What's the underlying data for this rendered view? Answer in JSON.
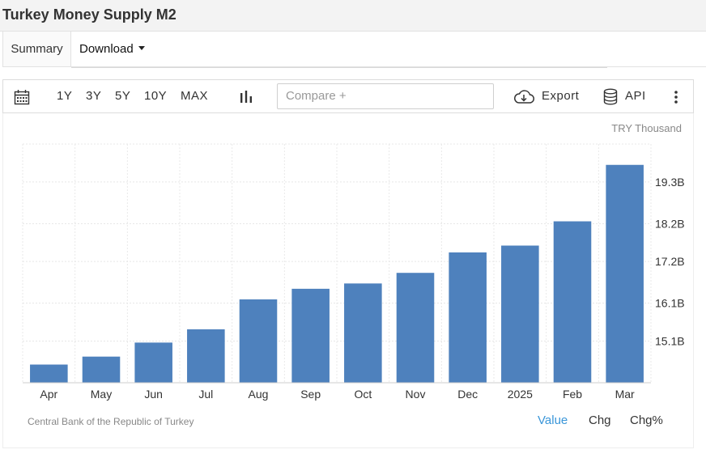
{
  "page": {
    "title": "Turkey Money Supply M2"
  },
  "tabs": {
    "summary": "Summary",
    "download": "Download"
  },
  "toolbar": {
    "ranges": [
      "1Y",
      "3Y",
      "5Y",
      "10Y",
      "MAX"
    ],
    "compare_placeholder": "Compare +",
    "export": "Export",
    "api": "API"
  },
  "chart": {
    "unit": "TRY Thousand",
    "source": "Central Bank of the Republic of Turkey",
    "modes": [
      "Value",
      "Chg",
      "Chg%"
    ],
    "active_mode": "Value",
    "bar_color": "#4e81bd"
  },
  "chart_data": {
    "type": "bar",
    "categories": [
      "Apr",
      "May",
      "Jun",
      "Jul",
      "Aug",
      "Sep",
      "Oct",
      "Nov",
      "Dec",
      "2025",
      "Feb",
      "Mar"
    ],
    "values": [
      14.48,
      14.69,
      15.06,
      15.41,
      16.2,
      16.48,
      16.62,
      16.9,
      17.44,
      17.62,
      18.26,
      19.75
    ],
    "value_unit": "TRY billion (thousands shown as B)",
    "yticks": [
      "15.1B",
      "16.1B",
      "17.2B",
      "18.2B",
      "19.3B"
    ],
    "ytick_values": [
      15.1,
      16.1,
      17.2,
      18.2,
      19.3
    ],
    "ylim": [
      14.0,
      20.3
    ],
    "grid": true,
    "title": "Turkey Money Supply M2",
    "ylabel": "TRY Thousand"
  }
}
